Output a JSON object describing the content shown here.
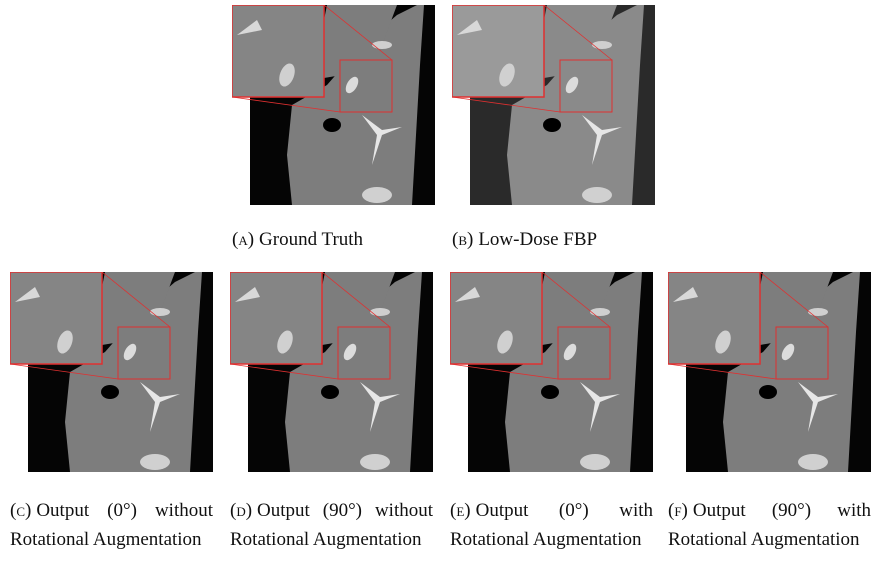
{
  "figures": [
    {
      "label": "(a)",
      "caption": "Ground Truth"
    },
    {
      "label": "(b)",
      "caption": "Low-Dose FBP"
    },
    {
      "label": "(c)",
      "caption": "Output (0°) without Rotational Augmentation"
    },
    {
      "label": "(d)",
      "caption": "Output (90°) without Rotational Augmentation"
    },
    {
      "label": "(e)",
      "caption": "Output (0°) with Rotational Augmentation"
    },
    {
      "label": "(f)",
      "caption": "Output (90°) with Rotational Augmentation"
    }
  ]
}
